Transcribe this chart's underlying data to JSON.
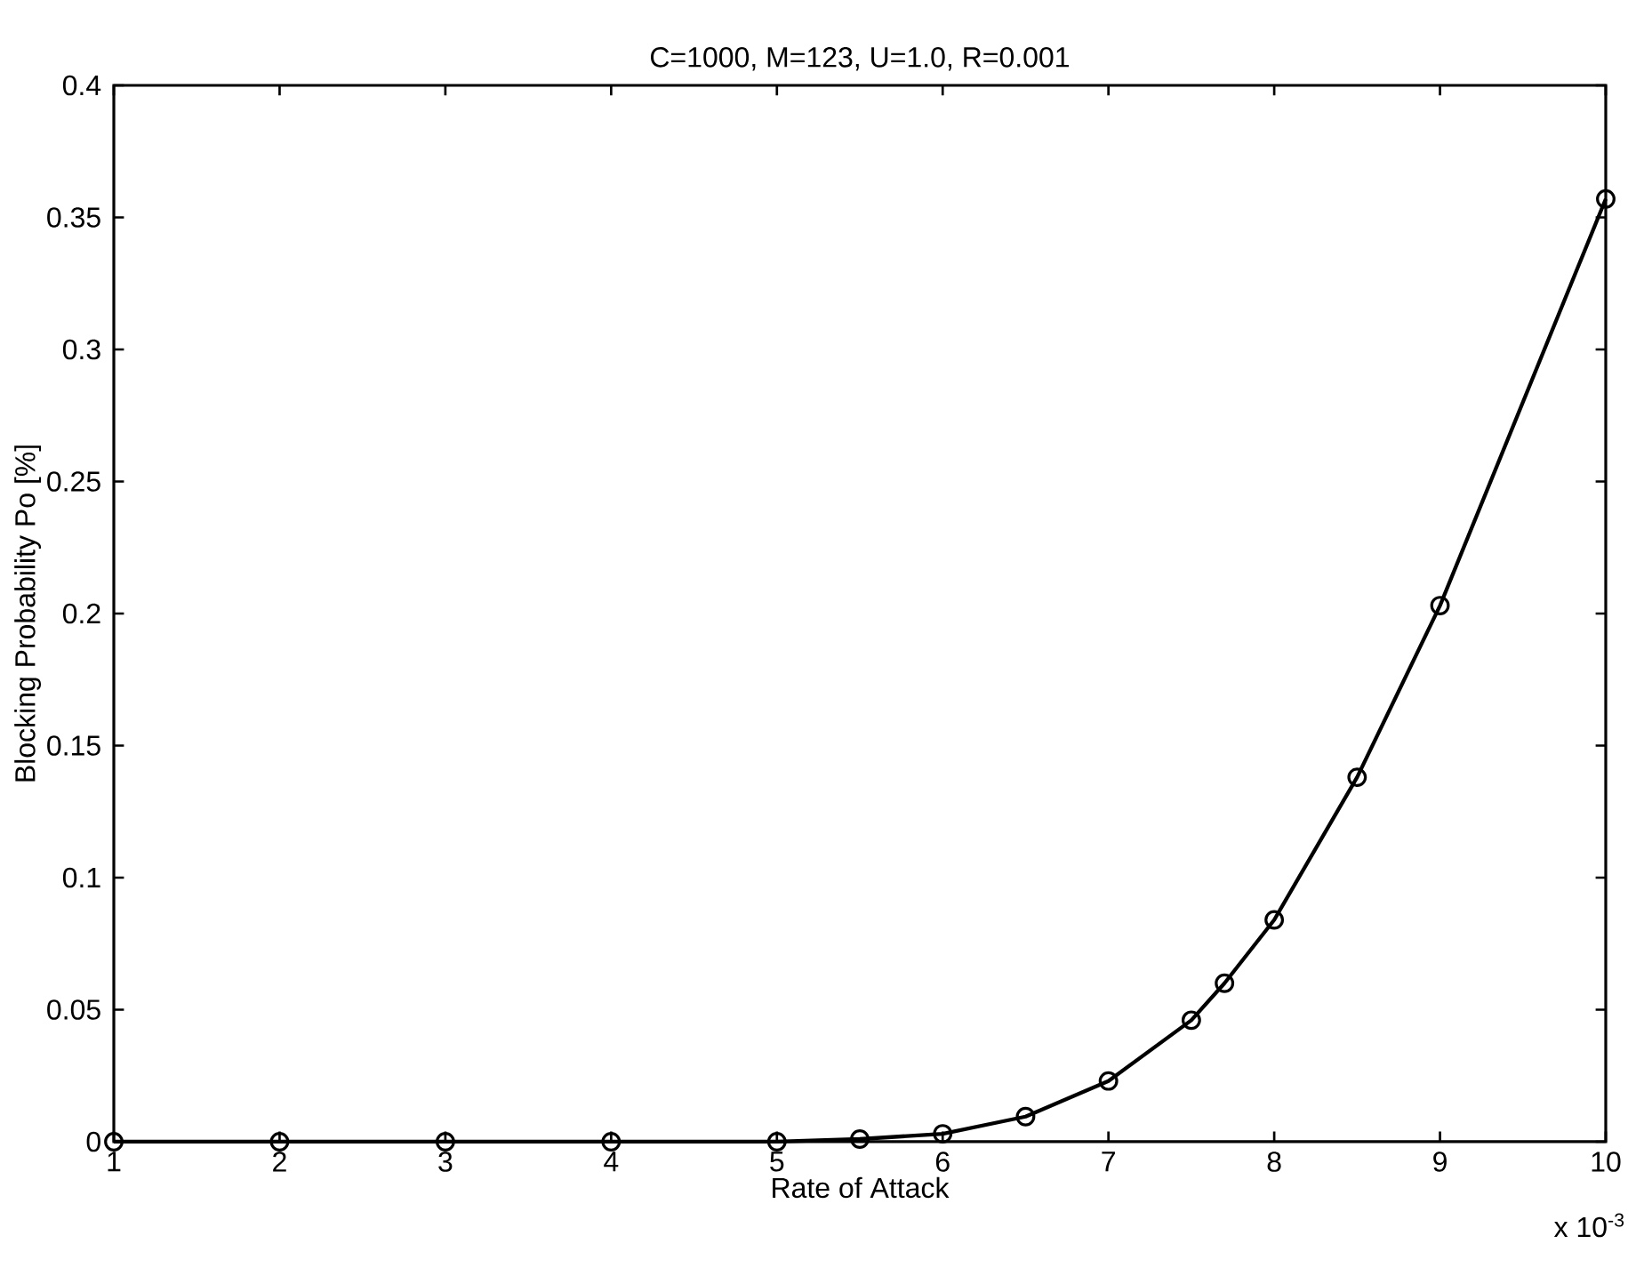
{
  "chart_data": {
    "type": "line",
    "title": "C=1000, M=123, U=1.0, R=0.001",
    "xlabel": "Rate of Attack",
    "ylabel": "Blocking Probability Po [%]",
    "annotations": [
      "x 10$^{-3}$"
    ],
    "x": [
      1,
      2,
      3,
      4,
      5,
      5.5,
      6,
      6.5,
      7,
      7.5,
      7.7,
      8,
      8.5,
      9,
      10
    ],
    "series": [
      {
        "color": "#000000",
        "values": [
          0,
          0,
          0,
          0,
          0,
          0.001,
          0.003,
          0.0095,
          0.023,
          0.046,
          0.06,
          0.084,
          0.138,
          0.203,
          0.357
        ]
      }
    ],
    "xlim": [
      1,
      10
    ],
    "xticks": [
      1,
      2,
      3,
      4,
      5,
      6,
      7,
      8,
      9,
      10
    ],
    "ylim": [
      0,
      0.4
    ],
    "yticks": [
      0,
      0.05,
      0.1,
      0.15,
      0.2,
      0.25,
      0.3,
      0.35,
      0.4
    ],
    "marker": "circle",
    "line_style": "solid",
    "grid": false
  }
}
